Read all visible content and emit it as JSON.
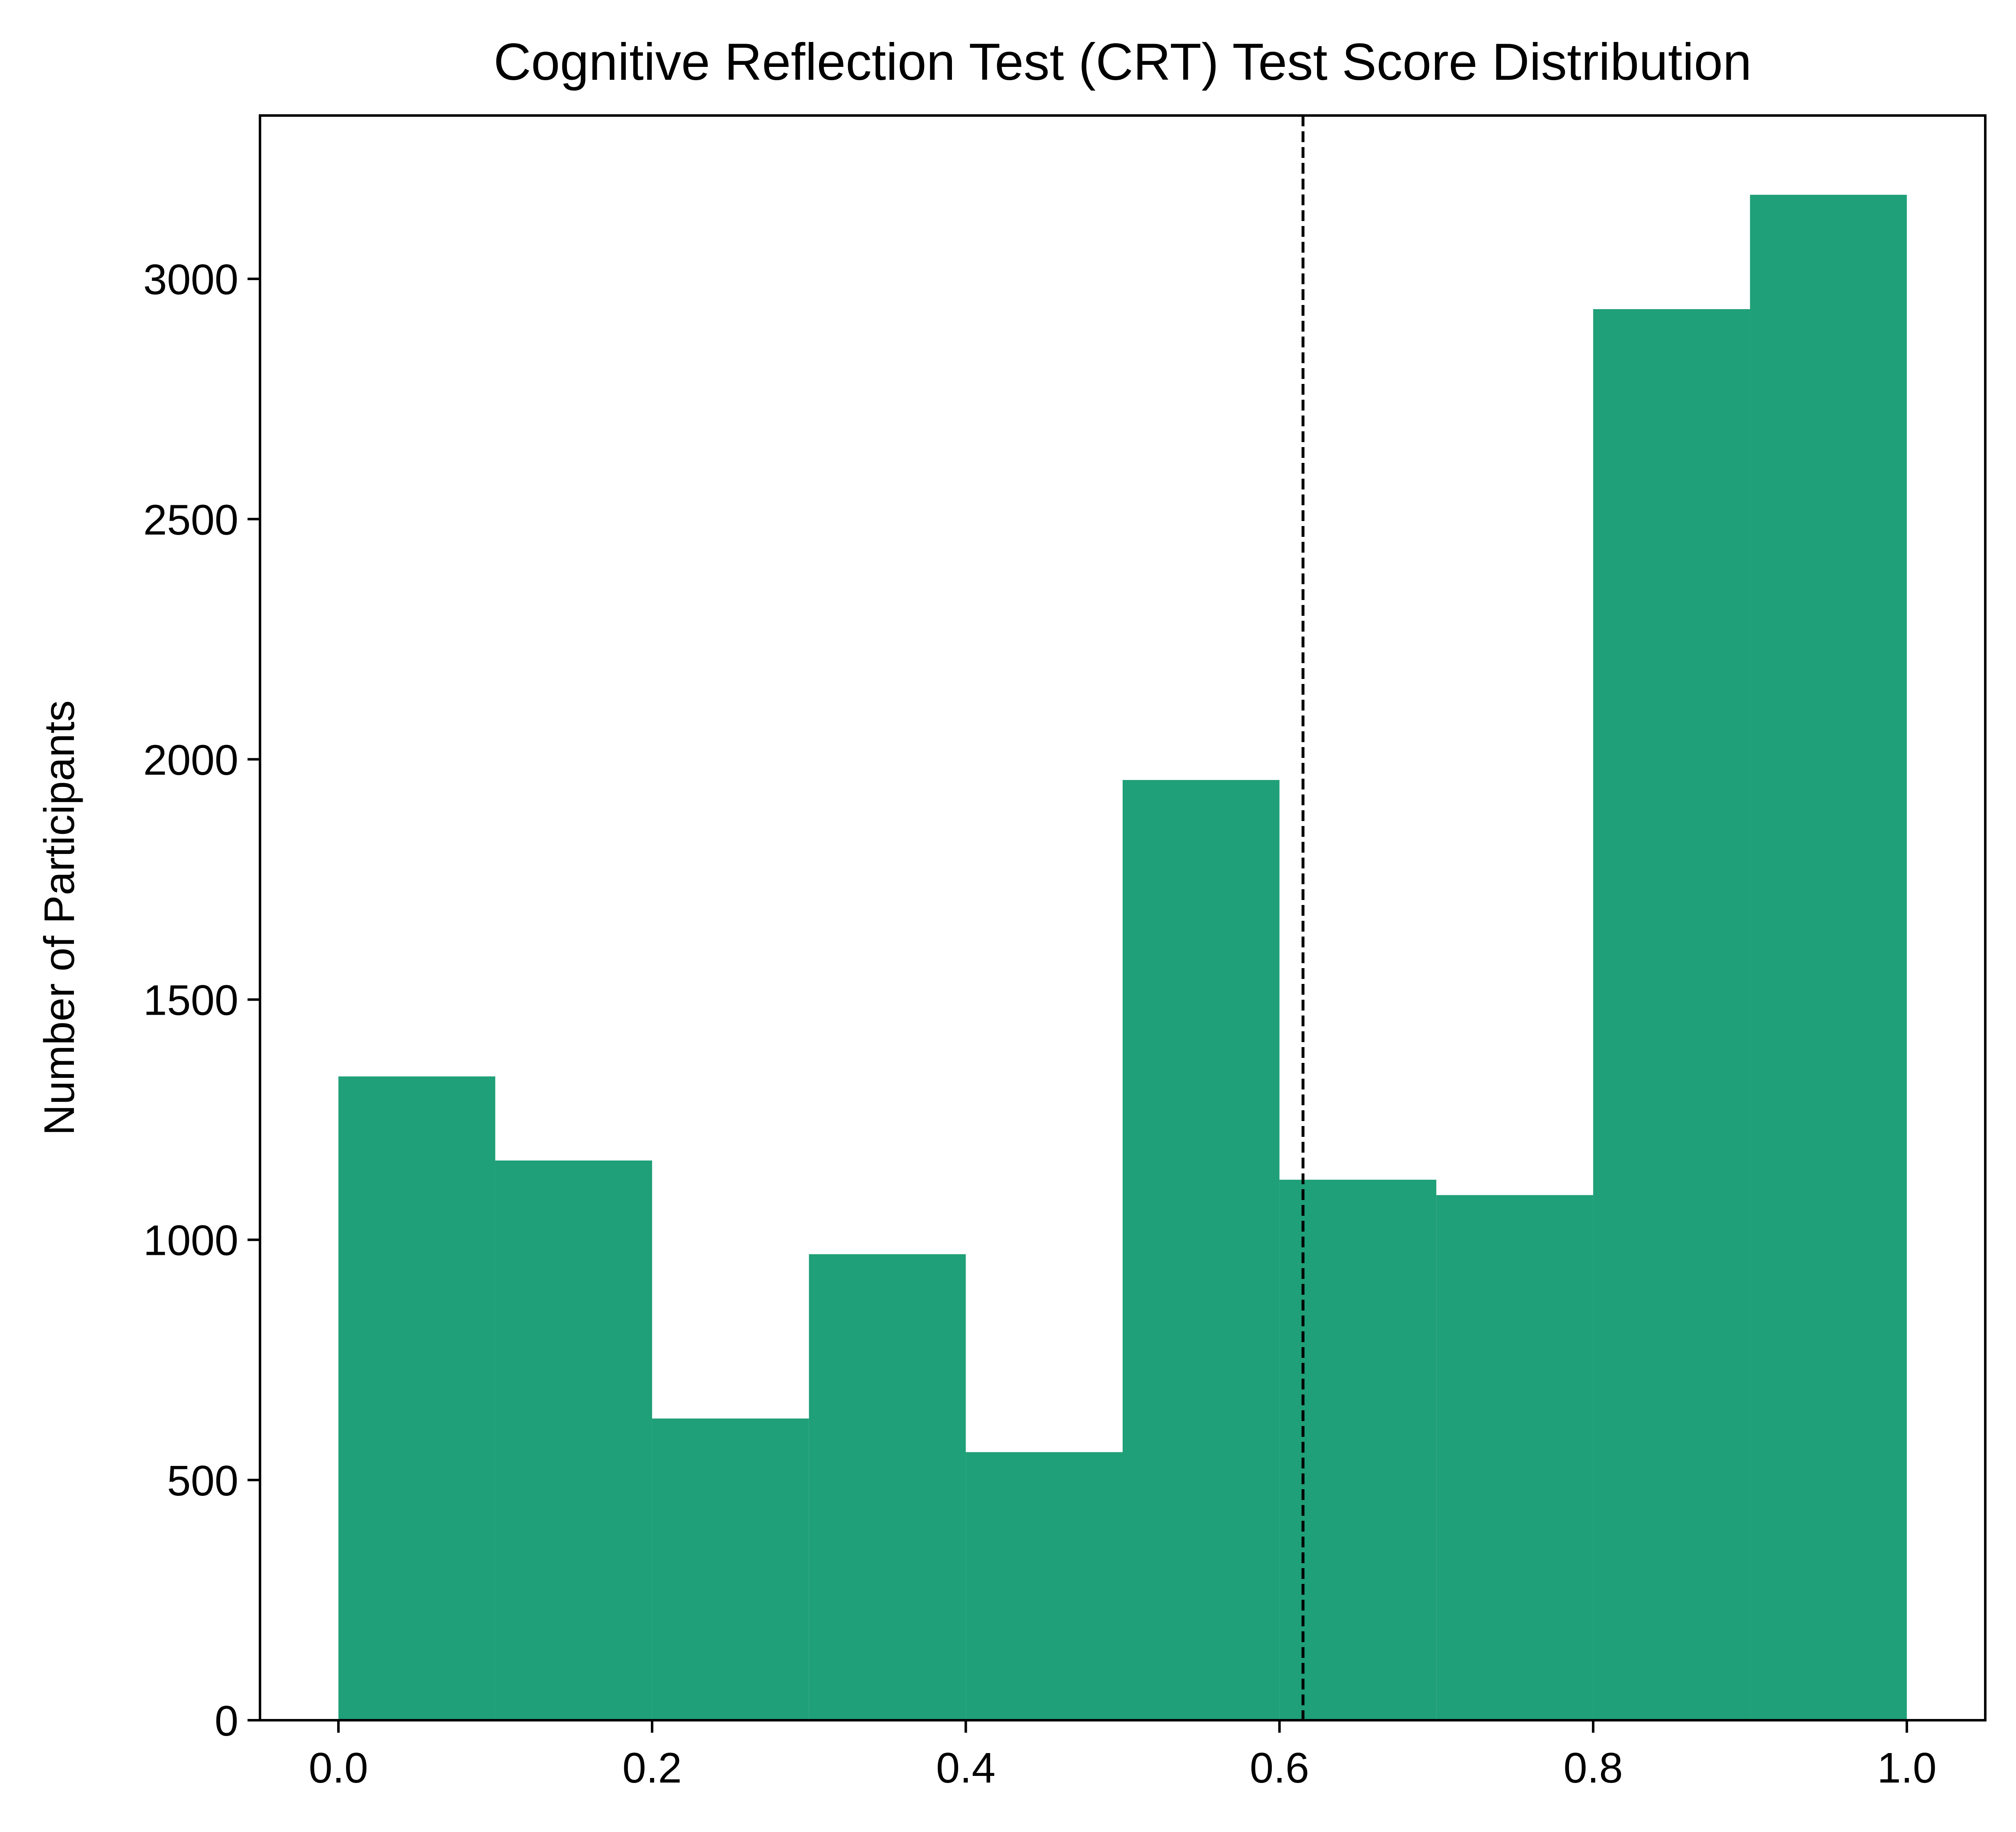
{
  "chart_data": {
    "type": "bar",
    "title": "Cognitive Reflection Test (CRT) Test Score Distribution",
    "xlabel": "",
    "ylabel": "Number of Participants",
    "bins": [
      {
        "start": 0.0,
        "end": 0.1,
        "count": 1340
      },
      {
        "start": 0.1,
        "end": 0.2,
        "count": 1165
      },
      {
        "start": 0.2,
        "end": 0.3,
        "count": 628
      },
      {
        "start": 0.3,
        "end": 0.4,
        "count": 970
      },
      {
        "start": 0.4,
        "end": 0.5,
        "count": 558
      },
      {
        "start": 0.5,
        "end": 0.6,
        "count": 1957
      },
      {
        "start": 0.6,
        "end": 0.7,
        "count": 1125
      },
      {
        "start": 0.7,
        "end": 0.8,
        "count": 1093
      },
      {
        "start": 0.8,
        "end": 0.9,
        "count": 2937
      },
      {
        "start": 0.9,
        "end": 1.0,
        "count": 3175
      }
    ],
    "reference_line": {
      "x": 0.615,
      "style": "dashed",
      "color": "#000000"
    },
    "xlim": [
      -0.05,
      1.05
    ],
    "ylim": [
      0,
      3340
    ],
    "x_ticks": [
      0.0,
      0.2,
      0.4,
      0.6,
      0.8,
      1.0
    ],
    "x_tick_labels": [
      "0.0",
      "0.2",
      "0.4",
      "0.6",
      "0.8",
      "1.0"
    ],
    "y_ticks": [
      0,
      500,
      1000,
      1500,
      2000,
      2500,
      3000
    ],
    "y_tick_labels": [
      "0",
      "500",
      "1000",
      "1500",
      "2000",
      "2500",
      "3000"
    ],
    "bar_color": "#1fa078",
    "grid": false,
    "legend": "none"
  }
}
